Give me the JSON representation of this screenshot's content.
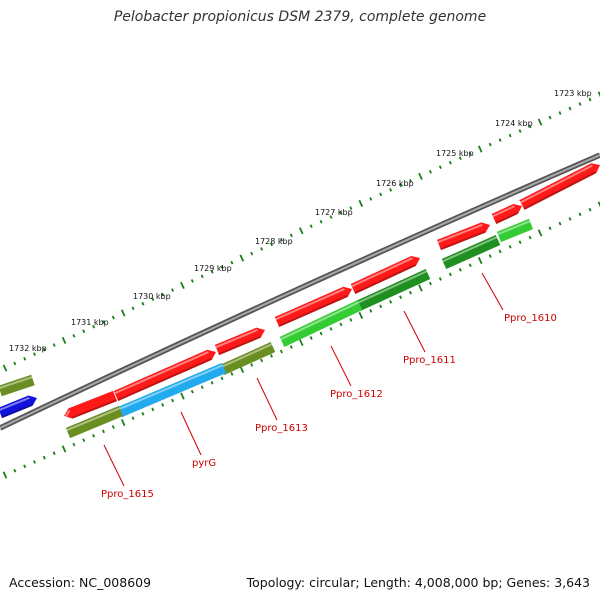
{
  "title": "Pelobacter propionicus DSM 2379, complete genome",
  "footer": {
    "accession": "Accession: NC_008609",
    "topology": "Topology: circular; Length: 4,008,000 bp; Genes: 3,643"
  },
  "colors": {
    "backbone": "#7f7f7f",
    "cds_forward": "#ff1a1a",
    "cds_reverse_olive": "#6b8e23",
    "cds_reverse_green": "#33cc33",
    "cds_reverse_darkgreen": "#1f8f1f",
    "cds_reverse_cyan": "#22aaee",
    "cds_blue": "#1111dd",
    "tick": "#1a7f1a",
    "label": "#cc0000"
  },
  "kbp_labels": [
    "1723 kbp",
    "1724 kbp",
    "1725 kbp",
    "1726 kbp",
    "1727 kbp",
    "1728 kbp",
    "1729 kbp",
    "1730 kbp",
    "1731 kbp",
    "1732 kbp"
  ],
  "gene_labels": [
    "Ppro_1610",
    "Ppro_1611",
    "Ppro_1612",
    "Ppro_1613",
    "pyrG",
    "Ppro_1615"
  ]
}
